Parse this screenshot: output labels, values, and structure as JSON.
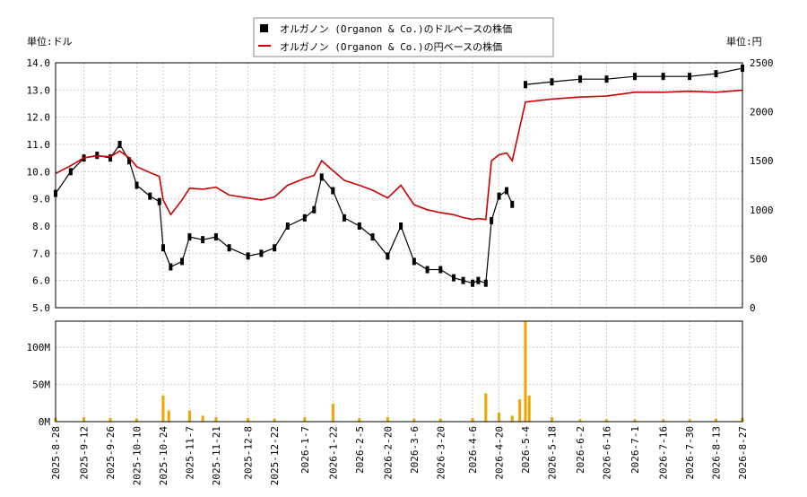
{
  "chart_data": [
    {
      "type": "candlestick+line",
      "title": "",
      "legend": {
        "position": "top-center",
        "entries": [
          {
            "label": "オルガノン (Organon & Co.)のドルベースの株価",
            "marker": "black-square",
            "color": "#000000"
          },
          {
            "label": "オルガノン (Organon & Co.)の円ベースの株価",
            "marker": "line",
            "color": "#cc0000"
          }
        ]
      },
      "left_axis": {
        "unit_label": "単位:ドル",
        "ylim": [
          5.0,
          14.0
        ],
        "ticks": [
          "5.0",
          "6.0",
          "7.0",
          "8.0",
          "9.0",
          "10.0",
          "11.0",
          "12.0",
          "13.0",
          "14.0"
        ]
      },
      "right_axis": {
        "unit_label": "単位:円",
        "ylim": [
          0,
          2500
        ],
        "ticks": [
          "0",
          "500",
          "1000",
          "1500",
          "2000",
          "2500"
        ]
      },
      "grid": true,
      "x_ticks": [
        "2025-8-28",
        "2025-9-12",
        "2025-9-26",
        "2025-10-10",
        "2025-10-24",
        "2025-11-7",
        "2025-11-21",
        "2025-12-8",
        "2025-12-22",
        "2026-1-7",
        "2026-1-22",
        "2026-2-5",
        "2026-2-20",
        "2026-3-6",
        "2026-3-20",
        "2026-4-6",
        "2026-4-20",
        "2026-5-4",
        "2026-5-18",
        "2026-6-2",
        "2026-6-16",
        "2026-7-1",
        "2026-7-16",
        "2026-7-30",
        "2026-8-13",
        "2026-8-27"
      ],
      "usd_series": {
        "name": "オルガノン (Organon & Co.)のドルベースの株価",
        "x_dates": [
          "2025-8-28",
          "2025-9-5",
          "2025-9-12",
          "2025-9-19",
          "2025-9-26",
          "2025-10-1",
          "2025-10-6",
          "2025-10-10",
          "2025-10-17",
          "2025-10-22",
          "2025-10-24",
          "2025-10-28",
          "2025-11-3",
          "2025-11-7",
          "2025-11-14",
          "2025-11-21",
          "2025-11-28",
          "2025-12-8",
          "2025-12-15",
          "2025-12-22",
          "2025-12-29",
          "2026-1-7",
          "2026-1-12",
          "2026-1-16",
          "2026-1-22",
          "2026-1-28",
          "2026-2-5",
          "2026-2-12",
          "2026-2-20",
          "2026-2-27",
          "2026-3-6",
          "2026-3-13",
          "2026-3-20",
          "2026-3-27",
          "2026-4-1",
          "2026-4-6",
          "2026-4-9",
          "2026-4-13",
          "2026-4-16",
          "2026-4-20",
          "2026-4-24",
          "2026-4-27",
          "2026-5-4",
          "2026-5-18",
          "2026-6-2",
          "2026-6-16",
          "2026-7-1",
          "2026-7-16",
          "2026-7-30",
          "2026-8-13",
          "2026-8-27"
        ],
        "values": [
          9.2,
          10.0,
          10.5,
          10.6,
          10.5,
          11.0,
          10.4,
          9.5,
          9.1,
          8.9,
          7.2,
          6.5,
          6.7,
          7.6,
          7.5,
          7.6,
          7.2,
          6.9,
          7.0,
          7.2,
          8.0,
          8.3,
          8.6,
          9.8,
          9.3,
          8.3,
          8.0,
          7.6,
          6.9,
          8.0,
          6.7,
          6.4,
          6.4,
          6.1,
          6.0,
          5.9,
          6.0,
          5.9,
          8.2,
          9.1,
          9.3,
          8.8,
          13.2,
          13.3,
          13.4,
          13.4,
          13.5,
          13.5,
          13.5,
          13.6,
          13.8
        ]
      },
      "jpy_series": {
        "name": "オルガノン (Organon & Co.)の円ベースの株価",
        "x_dates": [
          "2025-8-28",
          "2025-9-5",
          "2025-9-12",
          "2025-9-19",
          "2025-9-26",
          "2025-10-1",
          "2025-10-6",
          "2025-10-10",
          "2025-10-17",
          "2025-10-22",
          "2025-10-24",
          "2025-10-28",
          "2025-11-3",
          "2025-11-7",
          "2025-11-14",
          "2025-11-21",
          "2025-11-28",
          "2025-12-8",
          "2025-12-15",
          "2025-12-22",
          "2025-12-29",
          "2026-1-7",
          "2026-1-12",
          "2026-1-16",
          "2026-1-22",
          "2026-1-28",
          "2026-2-5",
          "2026-2-12",
          "2026-2-20",
          "2026-2-27",
          "2026-3-6",
          "2026-3-13",
          "2026-3-20",
          "2026-3-27",
          "2026-4-1",
          "2026-4-6",
          "2026-4-9",
          "2026-4-13",
          "2026-4-16",
          "2026-4-20",
          "2026-4-24",
          "2026-4-27",
          "2026-5-4",
          "2026-5-18",
          "2026-6-2",
          "2026-6-16",
          "2026-7-1",
          "2026-7-16",
          "2026-7-30",
          "2026-8-13",
          "2026-8-27"
        ],
        "values": [
          1370,
          1450,
          1530,
          1550,
          1540,
          1600,
          1530,
          1440,
          1380,
          1340,
          1100,
          950,
          1100,
          1220,
          1210,
          1230,
          1150,
          1120,
          1100,
          1130,
          1250,
          1320,
          1350,
          1500,
          1400,
          1300,
          1250,
          1200,
          1120,
          1250,
          1050,
          1000,
          970,
          950,
          920,
          900,
          910,
          900,
          1500,
          1560,
          1580,
          1500,
          2100,
          2130,
          2150,
          2160,
          2200,
          2200,
          2210,
          2200,
          2220
        ]
      },
      "volume": {
        "ylabel_ticks": [
          "0M",
          "50M",
          "100M"
        ],
        "ylim": [
          0,
          135
        ],
        "x_dates": [
          "2025-8-28",
          "2025-9-12",
          "2025-9-26",
          "2025-10-10",
          "2025-10-24",
          "2025-10-27",
          "2025-11-7",
          "2025-11-14",
          "2025-11-21",
          "2025-12-8",
          "2025-12-22",
          "2026-1-7",
          "2026-1-22",
          "2026-2-5",
          "2026-2-20",
          "2026-3-6",
          "2026-3-20",
          "2026-4-6",
          "2026-4-13",
          "2026-4-20",
          "2026-4-27",
          "2026-5-1",
          "2026-5-4",
          "2026-5-6",
          "2026-5-18",
          "2026-6-2",
          "2026-6-16",
          "2026-7-1",
          "2026-7-16",
          "2026-7-30",
          "2026-8-13",
          "2026-8-27"
        ],
        "values": [
          5,
          6,
          5,
          4,
          35,
          15,
          15,
          8,
          6,
          5,
          4,
          6,
          24,
          5,
          6,
          4,
          4,
          5,
          38,
          12,
          8,
          30,
          135,
          35,
          6,
          3,
          3,
          3,
          3,
          3,
          4,
          5
        ]
      }
    }
  ]
}
